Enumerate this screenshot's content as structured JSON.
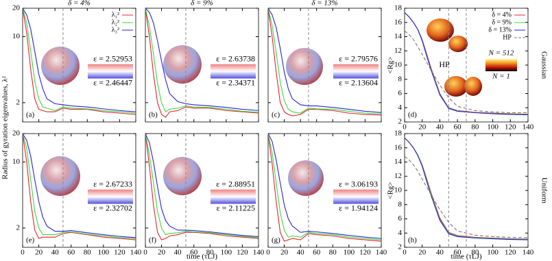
{
  "chart_data": [
    {
      "type": "line",
      "panel_label": "(a)",
      "title": "δ = 4%",
      "ylabel": "Radius of gyration eigenvalues, λ²",
      "log_y": true,
      "show_xtick_labels": false,
      "show_ytick_labels": true,
      "legend": "top right",
      "x": [
        0,
        5,
        10,
        15,
        20,
        25,
        30,
        40,
        50,
        60,
        80,
        100,
        120,
        140
      ],
      "xlim": [
        0,
        140
      ],
      "xticks": [
        0,
        20,
        40,
        60,
        80,
        100,
        120,
        140
      ],
      "ylim": [
        1.25,
        20
      ],
      "yticks": [
        2,
        10,
        20
      ],
      "vlines": [
        50
      ],
      "series": [
        {
          "name": "λ₁²",
          "color": "#e8212b",
          "values": [
            20,
            11,
            4.5,
            2.2,
            1.7,
            1.65,
            1.6,
            1.6,
            1.75,
            1.7,
            1.7,
            1.6,
            1.55,
            1.5
          ]
        },
        {
          "name": "λ₂²",
          "color": "#3bd93b",
          "values": [
            20,
            14,
            7,
            3.4,
            2.2,
            1.8,
            1.75,
            1.65,
            1.8,
            1.75,
            1.72,
            1.65,
            1.6,
            1.55
          ]
        },
        {
          "name": "λ₃²",
          "color": "#2323d6",
          "values": [
            20,
            17,
            12,
            7,
            4,
            2.8,
            2.2,
            1.95,
            1.9,
            1.85,
            1.8,
            1.72,
            1.65,
            1.6
          ]
        }
      ],
      "annotations": [
        {
          "text": "ε = 2.52953",
          "color": "#e8212b"
        },
        {
          "text": "ε = 2.46447",
          "color": "#2323d6"
        }
      ]
    },
    {
      "type": "line",
      "panel_label": "(b)",
      "title": "δ = 9%",
      "log_y": true,
      "show_xtick_labels": false,
      "show_ytick_labels": false,
      "x": [
        0,
        5,
        10,
        15,
        20,
        25,
        30,
        40,
        50,
        60,
        80,
        100,
        120,
        140
      ],
      "xlim": [
        0,
        140
      ],
      "xticks": [
        0,
        20,
        40,
        60,
        80,
        100,
        120,
        140
      ],
      "ylim": [
        1.25,
        20
      ],
      "yticks": [
        2,
        10,
        20
      ],
      "vlines": [
        50
      ],
      "series": [
        {
          "color": "#e8212b",
          "values": [
            20,
            10,
            4,
            2,
            1.5,
            1.4,
            1.6,
            1.65,
            1.8,
            1.75,
            1.75,
            1.65,
            1.6,
            1.55
          ]
        },
        {
          "color": "#3bd93b",
          "values": [
            20,
            13,
            6.5,
            3.2,
            2,
            1.6,
            1.7,
            1.75,
            1.85,
            1.8,
            1.78,
            1.7,
            1.62,
            1.58
          ]
        },
        {
          "color": "#2323d6",
          "values": [
            20,
            18,
            14,
            9,
            5.5,
            3.5,
            2.5,
            2.05,
            1.95,
            1.9,
            1.85,
            1.78,
            1.7,
            1.65
          ]
        }
      ],
      "annotations": [
        {
          "text": "ε = 2.63738",
          "color": "#e8212b"
        },
        {
          "text": "ε = 2.34371",
          "color": "#2323d6"
        }
      ]
    },
    {
      "type": "line",
      "panel_label": "(c)",
      "title": "δ = 13%",
      "log_y": true,
      "show_xtick_labels": false,
      "show_ytick_labels": false,
      "x": [
        0,
        5,
        10,
        15,
        20,
        25,
        30,
        40,
        50,
        60,
        80,
        100,
        120,
        140
      ],
      "xlim": [
        0,
        140
      ],
      "xticks": [
        0,
        20,
        40,
        60,
        80,
        100,
        120,
        140
      ],
      "ylim": [
        1.25,
        20
      ],
      "yticks": [
        2,
        10,
        20
      ],
      "vlines": [
        50
      ],
      "series": [
        {
          "color": "#e8212b",
          "values": [
            20,
            10,
            4.2,
            2,
            1.6,
            1.5,
            1.45,
            1.5,
            1.7,
            1.7,
            1.65,
            1.55,
            1.5,
            1.48
          ]
        },
        {
          "color": "#3bd93b",
          "values": [
            20,
            13,
            6.8,
            3.3,
            2.1,
            1.7,
            1.6,
            1.55,
            1.75,
            1.72,
            1.7,
            1.62,
            1.55,
            1.52
          ]
        },
        {
          "color": "#2323d6",
          "values": [
            20,
            17,
            12.5,
            7.5,
            4.2,
            2.8,
            2.2,
            1.9,
            1.85,
            1.85,
            1.78,
            1.7,
            1.62,
            1.57
          ]
        }
      ],
      "annotations": [
        {
          "text": "ε = 2.79576",
          "color": "#e8212b"
        },
        {
          "text": "ε = 2.13604",
          "color": "#2323d6"
        }
      ]
    },
    {
      "type": "line",
      "panel_label": "(d)",
      "ylabel": "<Rg>",
      "row_label": "Gaussian",
      "log_y": false,
      "show_xtick_labels": true,
      "show_ytick_labels": true,
      "legend": "top right",
      "x": [
        0,
        5,
        10,
        15,
        20,
        25,
        30,
        40,
        50,
        60,
        80,
        100,
        120,
        140
      ],
      "xlim": [
        0,
        140
      ],
      "xticks": [
        0,
        20,
        40,
        60,
        80,
        100,
        120,
        140
      ],
      "ylim": [
        2,
        18
      ],
      "yticks": [
        2,
        4,
        6,
        8,
        10,
        12,
        14,
        16,
        18
      ],
      "vlines": [
        50,
        70
      ],
      "series": [
        {
          "name": "δ = 4%",
          "color": "#e8212b",
          "values": [
            17.4,
            16.8,
            16,
            15,
            13.6,
            11.6,
            9.6,
            6,
            4,
            3.6,
            3.35,
            3.25,
            3.15,
            3.1
          ]
        },
        {
          "name": "δ = 9%",
          "color": "#3bd93b",
          "values": [
            17.4,
            16.8,
            16,
            15,
            13.5,
            11.4,
            9.4,
            5.9,
            3.95,
            3.55,
            3.3,
            3.2,
            3.1,
            3.05
          ]
        },
        {
          "name": "δ = 13%",
          "color": "#2323d6",
          "values": [
            17.4,
            16.8,
            16,
            15,
            13.4,
            11.3,
            9.3,
            5.8,
            3.9,
            3.5,
            3.3,
            3.15,
            3.05,
            3.0
          ]
        },
        {
          "name": "HP",
          "color": "#777777",
          "dash": true,
          "values": [
            14.8,
            14.3,
            13.6,
            12.6,
            11.5,
            10.4,
            9.3,
            7.2,
            5.4,
            4.2,
            3.6,
            3.4,
            3.3,
            3.3
          ]
        }
      ],
      "annotations": [
        {
          "text": "HP",
          "color": "#000000"
        }
      ],
      "colorbar": {
        "top": "N = 512",
        "bottom": "N = 1"
      }
    },
    {
      "type": "line",
      "panel_label": "(e)",
      "log_y": true,
      "show_xtick_labels": true,
      "show_ytick_labels": true,
      "x": [
        0,
        5,
        10,
        15,
        20,
        25,
        30,
        40,
        50,
        60,
        80,
        100,
        120,
        140
      ],
      "xlim": [
        0,
        140
      ],
      "xticks": [
        0,
        20,
        40,
        60,
        80,
        100,
        120,
        140
      ],
      "ylim": [
        1.25,
        20
      ],
      "yticks": [
        2,
        10,
        20
      ],
      "vlines": [
        50
      ],
      "series": [
        {
          "color": "#e8212b",
          "values": [
            20,
            10,
            3.8,
            1.9,
            1.55,
            1.6,
            1.6,
            1.6,
            1.75,
            1.8,
            1.7,
            1.6,
            1.55,
            1.5
          ]
        },
        {
          "color": "#3bd93b",
          "values": [
            20,
            14,
            6.5,
            3,
            2,
            1.7,
            1.7,
            1.7,
            1.8,
            1.82,
            1.72,
            1.65,
            1.58,
            1.55
          ]
        },
        {
          "color": "#2323d6",
          "values": [
            20,
            17,
            11.5,
            6.5,
            3.8,
            2.6,
            2.1,
            1.85,
            1.85,
            1.88,
            1.78,
            1.7,
            1.63,
            1.58
          ]
        }
      ],
      "annotations": [
        {
          "text": "ε = 2.67233",
          "color": "#e8212b"
        },
        {
          "text": "ε = 2.32702",
          "color": "#2323d6"
        }
      ]
    },
    {
      "type": "line",
      "panel_label": "(f)",
      "xlabel": "time (τLJ)",
      "log_y": true,
      "show_xtick_labels": true,
      "show_ytick_labels": false,
      "x": [
        0,
        5,
        10,
        15,
        20,
        25,
        30,
        40,
        50,
        60,
        80,
        100,
        120,
        140
      ],
      "xlim": [
        0,
        140
      ],
      "xticks": [
        0,
        20,
        40,
        60,
        80,
        100,
        120,
        140
      ],
      "ylim": [
        1.25,
        20
      ],
      "yticks": [
        2,
        10,
        20
      ],
      "vlines": [
        50
      ],
      "series": [
        {
          "color": "#e8212b",
          "values": [
            20,
            9,
            3.5,
            1.8,
            1.5,
            1.55,
            1.65,
            1.7,
            1.8,
            1.8,
            1.75,
            1.65,
            1.6,
            1.55
          ]
        },
        {
          "color": "#3bd93b",
          "values": [
            20,
            12,
            6,
            3,
            2,
            1.7,
            1.75,
            1.78,
            1.85,
            1.82,
            1.78,
            1.7,
            1.63,
            1.58
          ]
        },
        {
          "color": "#2323d6",
          "values": [
            20,
            16,
            10,
            5.5,
            3.2,
            2.4,
            2.1,
            1.9,
            1.9,
            1.88,
            1.82,
            1.74,
            1.67,
            1.62
          ]
        }
      ],
      "annotations": [
        {
          "text": "ε = 2.88951",
          "color": "#e8212b"
        },
        {
          "text": "ε = 2.11225",
          "color": "#2323d6"
        }
      ]
    },
    {
      "type": "line",
      "panel_label": "(g)",
      "log_y": true,
      "show_xtick_labels": true,
      "show_ytick_labels": false,
      "x": [
        0,
        5,
        10,
        15,
        20,
        25,
        30,
        40,
        50,
        60,
        80,
        100,
        120,
        140
      ],
      "xlim": [
        0,
        140
      ],
      "xticks": [
        0,
        20,
        40,
        60,
        80,
        100,
        120,
        140
      ],
      "ylim": [
        1.25,
        20
      ],
      "yticks": [
        2,
        10,
        20
      ],
      "vlines": [
        50
      ],
      "series": [
        {
          "color": "#e8212b",
          "values": [
            20,
            9.5,
            3.8,
            1.8,
            1.45,
            1.5,
            1.55,
            1.5,
            1.75,
            1.7,
            1.65,
            1.55,
            1.5,
            1.45
          ]
        },
        {
          "color": "#3bd93b",
          "values": [
            20,
            12.5,
            6,
            2.9,
            1.9,
            1.6,
            1.65,
            1.6,
            1.8,
            1.75,
            1.7,
            1.6,
            1.55,
            1.5
          ]
        },
        {
          "color": "#2323d6",
          "values": [
            20,
            16.5,
            10.5,
            6,
            3.5,
            2.5,
            2.1,
            1.8,
            1.85,
            1.82,
            1.75,
            1.67,
            1.6,
            1.55
          ]
        }
      ],
      "annotations": [
        {
          "text": "ε = 3.06193",
          "color": "#e8212b"
        },
        {
          "text": "ε = 1.94124",
          "color": "#2323d6"
        }
      ]
    },
    {
      "type": "line",
      "panel_label": "(h)",
      "ylabel": "<Rg>",
      "xlabel": "time (τLJ)",
      "row_label": "Uniform",
      "log_y": false,
      "show_xtick_labels": true,
      "show_ytick_labels": true,
      "x": [
        0,
        5,
        10,
        15,
        20,
        25,
        30,
        40,
        50,
        60,
        80,
        100,
        120,
        140
      ],
      "xlim": [
        0,
        140
      ],
      "xticks": [
        0,
        20,
        40,
        60,
        80,
        100,
        120,
        140
      ],
      "ylim": [
        2,
        18
      ],
      "yticks": [
        2,
        4,
        6,
        8,
        10,
        12,
        14,
        16,
        18
      ],
      "vlines": [
        50,
        70
      ],
      "series": [
        {
          "color": "#e8212b",
          "values": [
            17.4,
            16.8,
            16,
            15,
            13.6,
            11.7,
            9.7,
            6.1,
            4.1,
            3.65,
            3.4,
            3.3,
            3.2,
            3.15
          ]
        },
        {
          "color": "#3bd93b",
          "values": [
            17.4,
            16.8,
            16,
            15,
            13.5,
            11.5,
            9.5,
            5.9,
            4,
            3.55,
            3.35,
            3.25,
            3.15,
            3.1
          ]
        },
        {
          "color": "#2323d6",
          "values": [
            17.4,
            16.8,
            16,
            14.9,
            13.4,
            11.3,
            9.3,
            5.8,
            3.9,
            3.5,
            3.3,
            3.2,
            3.1,
            3.05
          ]
        },
        {
          "color": "#777777",
          "dash": true,
          "values": [
            14.8,
            14.3,
            13.6,
            12.7,
            11.6,
            10.5,
            9.4,
            7.3,
            5.5,
            4.3,
            3.7,
            3.5,
            3.4,
            3.35
          ]
        }
      ]
    }
  ]
}
